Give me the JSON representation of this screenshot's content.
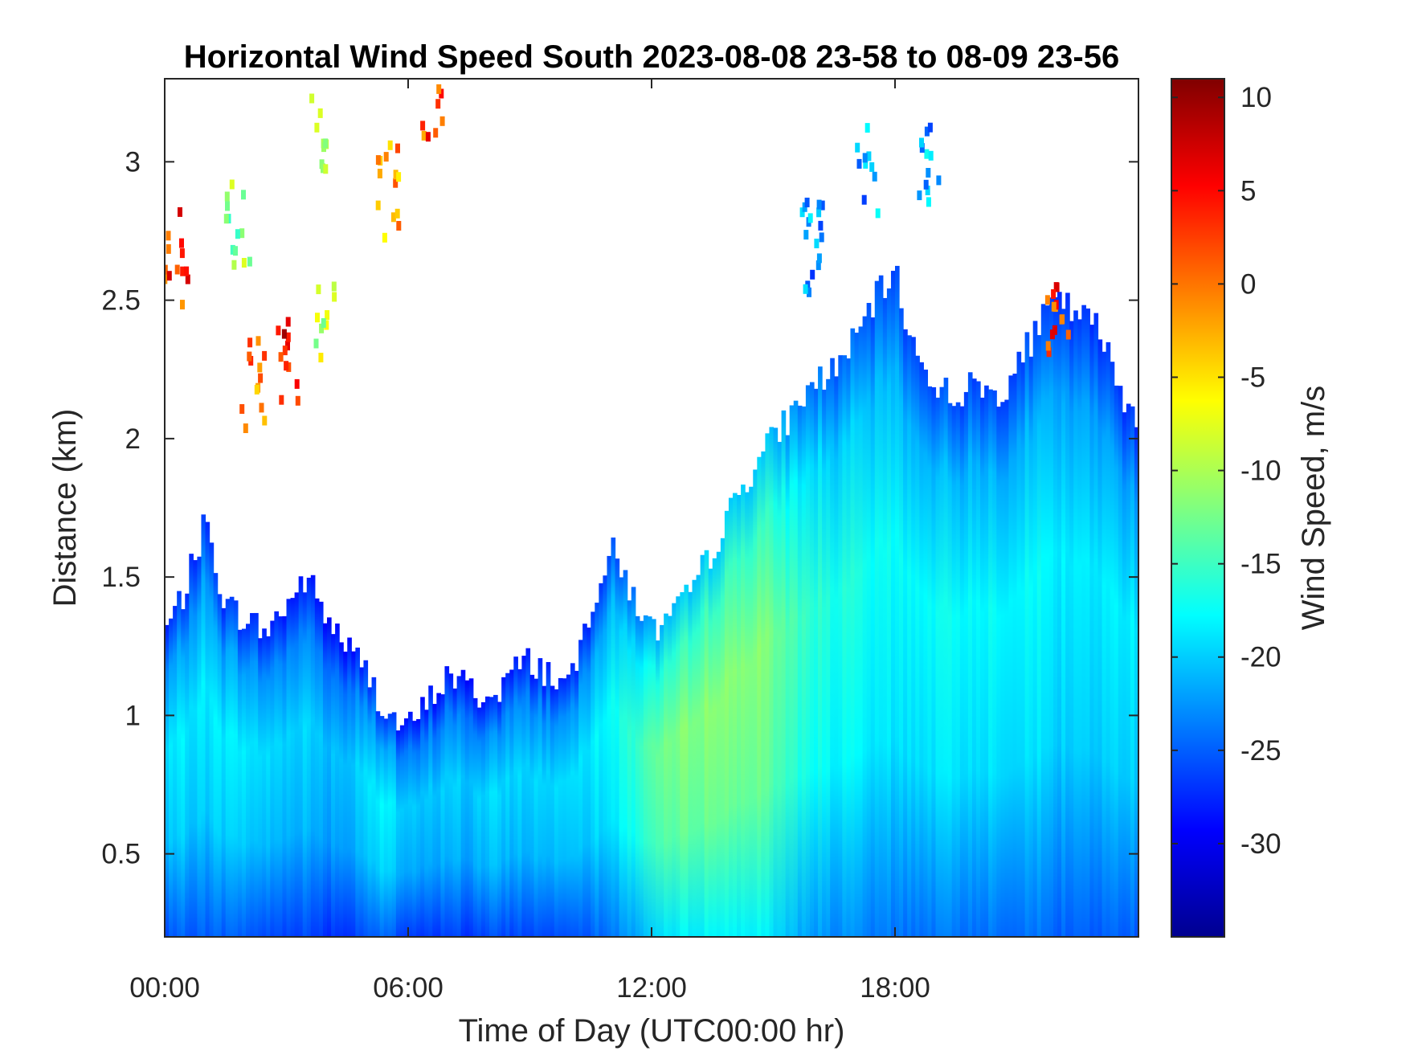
{
  "chart_data": {
    "type": "heatmap",
    "title": "Horizontal Wind Speed South 2023-08-08 23-58 to 08-09 23-56",
    "xlabel": "Time of Day (UTC00:00 hr)",
    "ylabel": "Distance (km)",
    "colorbar_label": "Wind Speed, m/s",
    "colormap": "jet",
    "xlim": [
      0,
      24
    ],
    "ylim": [
      0.2,
      3.3
    ],
    "clim": [
      -35,
      11
    ],
    "x_ticks": [
      0,
      6,
      12,
      18
    ],
    "x_tick_labels": [
      "00:00",
      "06:00",
      "12:00",
      "18:00"
    ],
    "y_ticks": [
      0.5,
      1,
      1.5,
      2,
      2.5,
      3
    ],
    "y_tick_labels": [
      "0.5",
      "1",
      "1.5",
      "2",
      "2.5",
      "3"
    ],
    "colorbar_ticks": [
      10,
      5,
      0,
      -5,
      -10,
      -15,
      -20,
      -25,
      -30
    ],
    "colorbar_tick_labels": [
      "10",
      "5",
      "0",
      "-5",
      "-10",
      "-15",
      "-20",
      "-25",
      "-30"
    ],
    "grid": false,
    "boundary_height_km": {
      "time_hr": [
        0,
        0.5,
        1.0,
        1.5,
        2.0,
        2.5,
        3.0,
        3.5,
        4.0,
        4.5,
        5.0,
        5.5,
        6.0,
        6.5,
        7.0,
        7.5,
        8.0,
        8.5,
        9.0,
        9.5,
        10.0,
        10.5,
        11.0,
        11.5,
        12.0,
        12.5,
        13.0,
        13.5,
        14.0,
        14.5,
        15.0,
        15.5,
        16.0,
        16.5,
        17.0,
        17.5,
        18.0,
        18.5,
        19.0,
        19.5,
        20.0,
        20.5,
        21.0,
        21.5,
        22.0,
        22.5,
        23.0,
        23.5,
        24.0
      ],
      "top_km": [
        1.3,
        1.45,
        1.7,
        1.4,
        1.35,
        1.3,
        1.4,
        1.5,
        1.35,
        1.25,
        1.15,
        1.0,
        0.95,
        1.05,
        1.15,
        1.1,
        1.05,
        1.15,
        1.2,
        1.15,
        1.1,
        1.4,
        1.6,
        1.45,
        1.3,
        1.35,
        1.45,
        1.6,
        1.75,
        1.9,
        2.0,
        2.1,
        2.2,
        2.25,
        2.35,
        2.5,
        2.6,
        2.3,
        2.2,
        2.15,
        2.2,
        2.15,
        2.25,
        2.4,
        2.5,
        2.45,
        2.4,
        2.2,
        2.05
      ],
      "core_speed_ms": [
        -20,
        -19,
        -19,
        -19,
        -19,
        -20,
        -20,
        -20,
        -21,
        -21,
        -19,
        -19,
        -21,
        -21,
        -20,
        -21,
        -20,
        -20,
        -20,
        -20,
        -19,
        -19,
        -18,
        -16,
        -14,
        -13,
        -12,
        -12,
        -12,
        -12,
        -13,
        -15,
        -16,
        -17,
        -17,
        -18,
        -18,
        -18,
        -18,
        -18,
        -18,
        -18,
        -18,
        -18,
        -19,
        -19,
        -19,
        -19,
        -19
      ]
    },
    "aloft_patches": [
      {
        "t_hr": 0.3,
        "z_km": 2.65,
        "speed_ms": 3
      },
      {
        "t_hr": 1.8,
        "z_km": 2.8,
        "speed_ms": -12
      },
      {
        "t_hr": 2.2,
        "z_km": 2.2,
        "speed_ms": 0
      },
      {
        "t_hr": 3.1,
        "z_km": 2.3,
        "speed_ms": 5
      },
      {
        "t_hr": 4.0,
        "z_km": 2.45,
        "speed_ms": -8
      },
      {
        "t_hr": 3.9,
        "z_km": 3.1,
        "speed_ms": -12
      },
      {
        "t_hr": 5.5,
        "z_km": 2.9,
        "speed_ms": -2
      },
      {
        "t_hr": 6.6,
        "z_km": 3.25,
        "speed_ms": 2
      },
      {
        "t_hr": 16.0,
        "z_km": 2.7,
        "speed_ms": -22
      },
      {
        "t_hr": 17.3,
        "z_km": 2.95,
        "speed_ms": -22
      },
      {
        "t_hr": 18.8,
        "z_km": 2.95,
        "speed_ms": -22
      },
      {
        "t_hr": 22.0,
        "z_km": 2.45,
        "speed_ms": 3
      }
    ]
  }
}
